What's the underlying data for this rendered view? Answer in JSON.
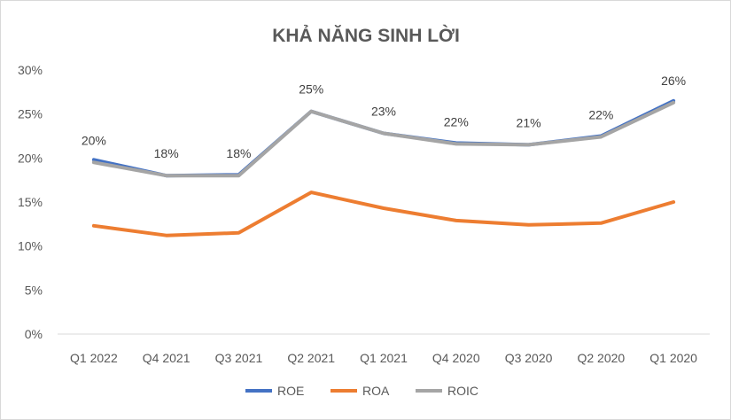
{
  "chart_data": {
    "type": "line",
    "title": "KHẢ NĂNG SINH LỜI",
    "categories": [
      "Q1 2022",
      "Q4 2021",
      "Q3 2021",
      "Q2 2021",
      "Q1 2021",
      "Q4 2020",
      "Q3 2020",
      "Q2 2020",
      "Q1 2020"
    ],
    "ylim": [
      0,
      30
    ],
    "yticks": [
      "0%",
      "5%",
      "10%",
      "15%",
      "20%",
      "25%",
      "30%"
    ],
    "grid": false,
    "legend_position": "bottom",
    "series": [
      {
        "name": "ROE",
        "color": "#4472c4",
        "values": [
          19.8,
          18.0,
          18.1,
          25.3,
          22.8,
          21.7,
          21.5,
          22.5,
          26.5
        ]
      },
      {
        "name": "ROA",
        "color": "#ed7d31",
        "values": [
          12.3,
          11.2,
          11.5,
          16.1,
          14.3,
          12.9,
          12.4,
          12.6,
          15.0
        ]
      },
      {
        "name": "ROIC",
        "color": "#a5a5a5",
        "values": [
          19.5,
          18.0,
          18.0,
          25.3,
          22.8,
          21.6,
          21.5,
          22.4,
          26.3
        ]
      }
    ],
    "data_labels": {
      "series": "ROIC",
      "labels": [
        "20%",
        "18%",
        "18%",
        "25%",
        "23%",
        "22%",
        "21%",
        "22%",
        "26%"
      ]
    }
  }
}
